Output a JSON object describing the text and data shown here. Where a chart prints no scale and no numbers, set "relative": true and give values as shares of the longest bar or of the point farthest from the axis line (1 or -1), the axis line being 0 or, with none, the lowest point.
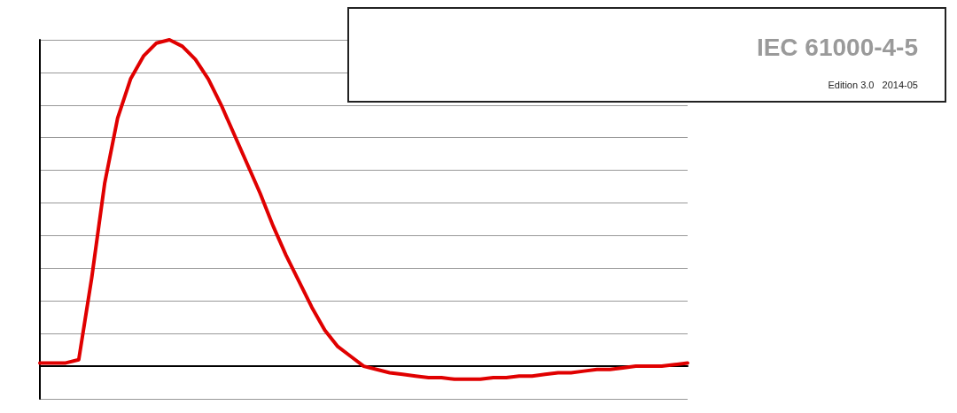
{
  "chart_data": {
    "type": "line",
    "relative": true,
    "grid": "y",
    "marker": "none",
    "line_style": "solid",
    "annotations": [
      "IEC 61000-4-5",
      "Edition 3.0   2014-05"
    ],
    "categories": [
      null,
      null,
      null,
      null,
      null,
      null,
      null,
      null,
      null,
      null,
      null,
      null,
      null,
      null,
      null,
      null,
      null,
      null,
      null,
      null,
      null,
      null,
      null,
      null,
      null,
      null,
      null,
      null,
      null,
      null,
      null,
      null,
      null,
      null,
      null,
      null,
      null,
      null,
      null,
      null,
      null,
      null,
      null,
      null,
      null,
      null,
      null,
      null,
      null,
      null,
      null
    ],
    "series": [
      {
        "color": "#e00000",
        "values": [
          0.01,
          0.01,
          0.01,
          0.02,
          0.27,
          0.56,
          0.76,
          0.88,
          0.95,
          0.99,
          1.0,
          0.98,
          0.94,
          0.88,
          0.8,
          0.71,
          0.62,
          0.53,
          0.43,
          0.34,
          0.26,
          0.18,
          0.11,
          0.06,
          0.03,
          0.0,
          -0.01,
          -0.02,
          -0.025,
          -0.03,
          -0.035,
          -0.035,
          -0.04,
          -0.04,
          -0.04,
          -0.035,
          -0.035,
          -0.03,
          -0.03,
          -0.025,
          -0.02,
          -0.02,
          -0.015,
          -0.01,
          -0.01,
          -0.005,
          0.0,
          0.0,
          0.0,
          0.005,
          0.01
        ]
      }
    ]
  }
}
